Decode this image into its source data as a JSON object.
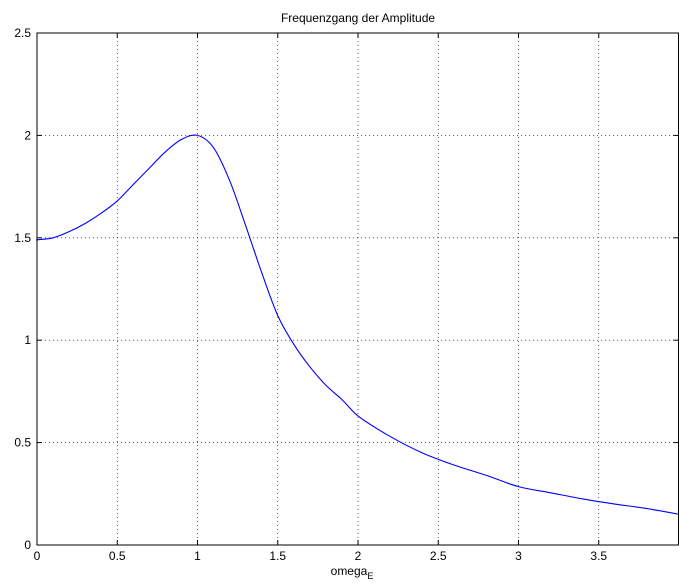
{
  "chart_data": {
    "type": "line",
    "title": "Frequenzgang der Amplitude",
    "xlabel": "omega",
    "xlabel_sub": "E",
    "ylabel": "",
    "xlim": [
      0,
      4
    ],
    "ylim": [
      0,
      2.5
    ],
    "grid": true,
    "x_ticks": [
      0,
      0.5,
      1,
      1.5,
      2,
      2.5,
      3,
      3.5
    ],
    "x_tick_labels": [
      "0",
      "0.5",
      "1",
      "1.5",
      "2",
      "2.5",
      "3",
      "3.5"
    ],
    "y_ticks": [
      0,
      0.5,
      1,
      1.5,
      2,
      2.5
    ],
    "y_tick_labels": [
      "0",
      "0.5",
      "1",
      "1.5",
      "2",
      "2.5"
    ],
    "series": [
      {
        "color": "#0000ff",
        "x": [
          0,
          0.1,
          0.2,
          0.3,
          0.4,
          0.5,
          0.6,
          0.7,
          0.8,
          0.9,
          1.0,
          1.1,
          1.2,
          1.3,
          1.4,
          1.5,
          1.6,
          1.7,
          1.8,
          1.9,
          2.0,
          2.2,
          2.4,
          2.6,
          2.8,
          3.0,
          3.2,
          3.4,
          3.6,
          3.8,
          4.0
        ],
        "y": [
          1.49,
          1.5,
          1.53,
          1.57,
          1.62,
          1.68,
          1.76,
          1.84,
          1.92,
          1.98,
          2.0,
          1.94,
          1.78,
          1.56,
          1.33,
          1.12,
          0.98,
          0.87,
          0.78,
          0.71,
          0.63,
          0.53,
          0.45,
          0.39,
          0.34,
          0.285,
          0.255,
          0.225,
          0.2,
          0.178,
          0.15
        ]
      }
    ],
    "markers": [
      {
        "color": "#ff0000",
        "x": 1.0,
        "y": 2.0
      },
      {
        "color": "#ff0000",
        "x": 0.0,
        "y": 1.49
      }
    ]
  }
}
